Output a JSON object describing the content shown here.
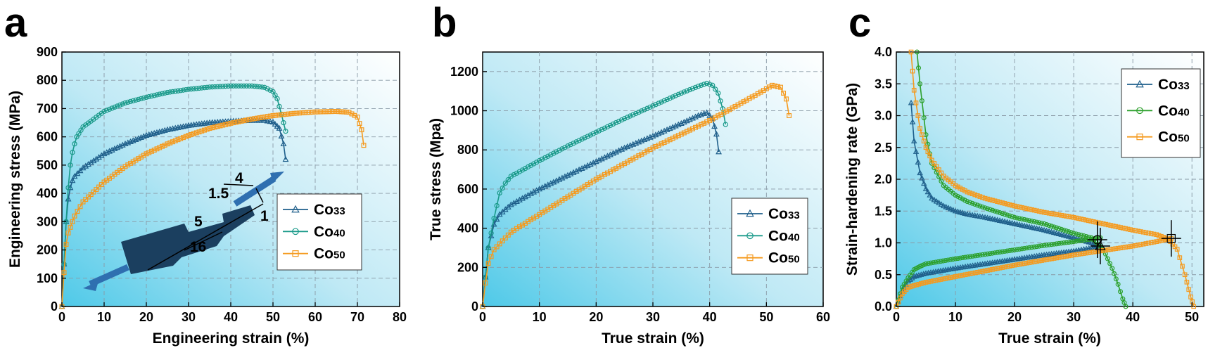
{
  "colors": {
    "Co33": "#1f5f8b",
    "Co40": "#1a9a8a",
    "Co50": "#f59a1e",
    "Co40c": "#2ca02c",
    "specimen": "#1b3f5f",
    "arrow": "#2f6fb0"
  },
  "panels": {
    "a": {
      "label": "a",
      "specimen": {
        "dims": [
          "4",
          "1.5",
          "1",
          "5",
          "16"
        ]
      },
      "chart_data": {
        "type": "line",
        "xlabel": "Engineering strain (%)",
        "ylabel": "Engineering stress (MPa)",
        "xlim": [
          0,
          80
        ],
        "ylim": [
          0,
          900
        ],
        "xticks": [
          "0",
          "10",
          "20",
          "30",
          "40",
          "50",
          "60",
          "70",
          "80"
        ],
        "yticks": [
          "0",
          "100",
          "200",
          "300",
          "400",
          "500",
          "600",
          "700",
          "800",
          "900"
        ],
        "grid": true,
        "legend_position": "bottom-right",
        "series": [
          {
            "name": "Co33",
            "marker": "triangle",
            "x": [
              0,
              0.5,
              1,
              1.5,
              2,
              2.5,
              3,
              5,
              10,
              15,
              20,
              25,
              30,
              35,
              40,
              45,
              48,
              50,
              51.5,
              52.5,
              53
            ],
            "y": [
              0,
              150,
              300,
              380,
              420,
              445,
              460,
              490,
              540,
              575,
              605,
              625,
              640,
              650,
              655,
              658,
              658,
              652,
              630,
              575,
              520
            ]
          },
          {
            "name": "Co40",
            "marker": "circle",
            "x": [
              0,
              0.5,
              1,
              1.5,
              2,
              2.5,
              3,
              3.5,
              5,
              10,
              15,
              20,
              25,
              30,
              35,
              40,
              45,
              48,
              50,
              51,
              52,
              53
            ],
            "y": [
              0,
              150,
              300,
              420,
              500,
              545,
              575,
              600,
              635,
              690,
              720,
              740,
              757,
              768,
              776,
              780,
              780,
              775,
              760,
              735,
              680,
              620
            ]
          },
          {
            "name": "Co50",
            "marker": "square",
            "x": [
              0,
              0.5,
              1,
              1.5,
              2,
              3,
              5,
              10,
              15,
              20,
              25,
              30,
              35,
              40,
              45,
              50,
              55,
              60,
              65,
              68,
              70,
              71,
              71.5
            ],
            "y": [
              0,
              120,
              220,
              260,
              280,
              320,
              370,
              440,
              495,
              540,
              575,
              605,
              630,
              648,
              663,
              675,
              683,
              688,
              690,
              687,
              670,
              625,
              570
            ]
          }
        ]
      }
    },
    "b": {
      "label": "b",
      "chart_data": {
        "type": "line",
        "xlabel": "True strain (%)",
        "ylabel": "True stress (Mpa)",
        "xlim": [
          0,
          60
        ],
        "ylim": [
          0,
          1300
        ],
        "xticks": [
          "0",
          "10",
          "20",
          "30",
          "40",
          "50",
          "60"
        ],
        "yticks": [
          "0",
          "200",
          "400",
          "600",
          "800",
          "1000",
          "1200"
        ],
        "grid": true,
        "legend_position": "bottom-right",
        "series": [
          {
            "name": "Co33",
            "marker": "triangle",
            "x": [
              0,
              0.5,
              1,
              2,
              3,
              5,
              10,
              15,
              20,
              25,
              30,
              35,
              38,
              39.5,
              40.5,
              41.2,
              41.6
            ],
            "y": [
              0,
              150,
              300,
              420,
              470,
              520,
              600,
              670,
              740,
              810,
              870,
              935,
              975,
              990,
              960,
              880,
              790
            ]
          },
          {
            "name": "Co40",
            "marker": "circle",
            "x": [
              0,
              0.5,
              1,
              2,
              3,
              4,
              5,
              10,
              15,
              20,
              25,
              30,
              35,
              38,
              39.5,
              40.5,
              41.5,
              42.3,
              42.8
            ],
            "y": [
              0,
              150,
              300,
              450,
              580,
              630,
              665,
              745,
              820,
              890,
              960,
              1025,
              1090,
              1125,
              1140,
              1130,
              1090,
              1010,
              930
            ]
          },
          {
            "name": "Co50",
            "marker": "square",
            "x": [
              0,
              0.5,
              1,
              2,
              3,
              5,
              10,
              15,
              20,
              25,
              30,
              35,
              40,
              45,
              49,
              51,
              52.5,
              53.5,
              54
            ],
            "y": [
              0,
              120,
              220,
              290,
              320,
              380,
              470,
              560,
              650,
              730,
              810,
              880,
              950,
              1030,
              1095,
              1130,
              1120,
              1060,
              975
            ]
          }
        ]
      }
    },
    "c": {
      "label": "c",
      "chart_data": {
        "type": "line",
        "xlabel": "True strain (%)",
        "ylabel": "Strain-hardening rate (GPa)",
        "xlim": [
          0,
          52
        ],
        "ylim": [
          0,
          4.0
        ],
        "xticks": [
          "0",
          "10",
          "20",
          "30",
          "40",
          "50"
        ],
        "yticks": [
          "0.0",
          "0.5",
          "1.0",
          "1.5",
          "2.0",
          "2.5",
          "3.0",
          "3.5",
          "4.0"
        ],
        "grid": true,
        "legend_position": "top-right",
        "series": [
          {
            "name": "Co33",
            "marker": "triangle",
            "role": "hardening-rate",
            "x": [
              2.5,
              3,
              4,
              5,
              6,
              8,
              10,
              12,
              15,
              20,
              25,
              30,
              33,
              34.5
            ],
            "y": [
              3.2,
              2.6,
              2.1,
              1.85,
              1.7,
              1.58,
              1.5,
              1.45,
              1.4,
              1.3,
              1.2,
              1.08,
              1.0,
              0.95
            ]
          },
          {
            "name": "Co33",
            "marker": "triangle",
            "role": "true-stress",
            "x": [
              0,
              1,
              2,
              3,
              5,
              10,
              15,
              20,
              25,
              30,
              33,
              34.5
            ],
            "y": [
              0,
              0.25,
              0.4,
              0.47,
              0.52,
              0.6,
              0.67,
              0.74,
              0.81,
              0.87,
              0.92,
              0.95
            ]
          },
          {
            "name": "Co40",
            "marker": "circle",
            "role": "hardening-rate",
            "x": [
              3.5,
              4,
              5,
              6,
              8,
              10,
              12,
              15,
              20,
              25,
              30,
              33,
              35,
              36.5,
              37.5,
              38.3,
              38.8
            ],
            "y": [
              4.0,
              3.5,
              2.7,
              2.25,
              1.9,
              1.75,
              1.65,
              1.55,
              1.4,
              1.3,
              1.15,
              1.08,
              0.9,
              0.6,
              0.35,
              0.12,
              0.0
            ]
          },
          {
            "name": "Co40",
            "marker": "circle",
            "role": "true-stress",
            "x": [
              0,
              1,
              2,
              3,
              4,
              5,
              10,
              15,
              20,
              25,
              30,
              33,
              34.5
            ],
            "y": [
              0,
              0.3,
              0.45,
              0.58,
              0.63,
              0.67,
              0.75,
              0.82,
              0.89,
              0.96,
              1.02,
              1.06,
              1.08
            ]
          },
          {
            "name": "Co50",
            "marker": "square",
            "role": "hardening-rate",
            "x": [
              2.5,
              3,
              4,
              5,
              6,
              8,
              10,
              12,
              15,
              20,
              25,
              30,
              35,
              40,
              44,
              46,
              47.5,
              48.8,
              49.8,
              50.3
            ],
            "y": [
              4.0,
              3.4,
              2.8,
              2.5,
              2.3,
              2.05,
              1.9,
              1.8,
              1.7,
              1.58,
              1.48,
              1.4,
              1.3,
              1.2,
              1.13,
              1.06,
              0.9,
              0.5,
              0.15,
              0.0
            ]
          },
          {
            "name": "Co50",
            "marker": "square",
            "role": "true-stress",
            "x": [
              0,
              1,
              2,
              3,
              5,
              10,
              15,
              20,
              25,
              30,
              35,
              40,
              44,
              46.5
            ],
            "y": [
              0,
              0.2,
              0.3,
              0.33,
              0.38,
              0.47,
              0.56,
              0.65,
              0.73,
              0.81,
              0.88,
              0.95,
              1.02,
              1.07
            ]
          }
        ],
        "intersections": [
          {
            "marker": "triangle",
            "x": 34.5,
            "y": 0.95,
            "series": "Co33"
          },
          {
            "marker": "circle",
            "x": 34.0,
            "y": 1.05,
            "series": "Co40"
          },
          {
            "marker": "square",
            "x": 46.5,
            "y": 1.07,
            "series": "Co50"
          }
        ]
      }
    }
  },
  "legend": [
    {
      "base": "Co",
      "sub": "33"
    },
    {
      "base": "Co",
      "sub": "40"
    },
    {
      "base": "Co",
      "sub": "50"
    }
  ]
}
